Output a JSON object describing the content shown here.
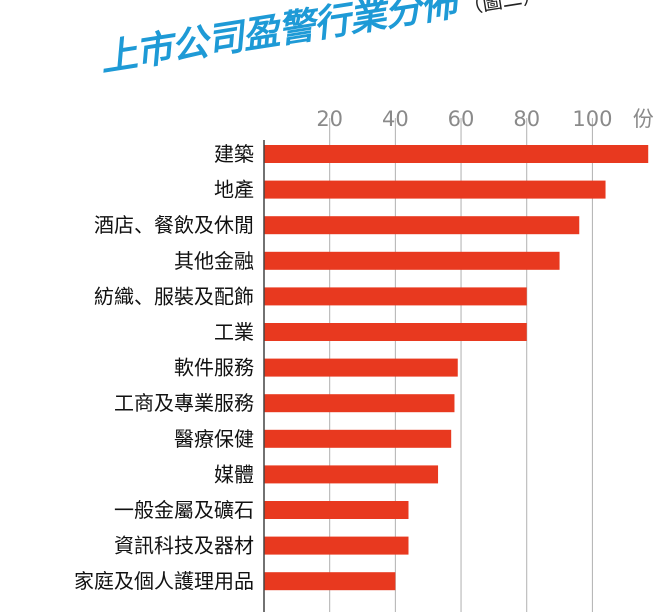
{
  "title": {
    "main": "上市公司盈警行業分佈",
    "sub": "（圖二）"
  },
  "chart_data": {
    "type": "bar",
    "orientation": "horizontal",
    "title": "上市公司盈警行業分佈（圖二）",
    "xlabel": "",
    "ylabel": "",
    "unit_label": "份",
    "xlim": [
      0,
      120
    ],
    "xticks": [
      20,
      40,
      60,
      80,
      100
    ],
    "grid": true,
    "bar_color": "#e8391f",
    "grid_color": "#b0b0b0",
    "categories": [
      "建築",
      "地產",
      "酒店、餐飲及休閒",
      "其他金融",
      "紡織、服裝及配飾",
      "工業",
      "軟件服務",
      "工商及專業服務",
      "醫療保健",
      "媒體",
      "一般金屬及礦石",
      "資訊科技及器材",
      "家庭及個人護理用品"
    ],
    "values": [
      117,
      104,
      96,
      90,
      80,
      80,
      59,
      58,
      57,
      53,
      44,
      44,
      40
    ]
  }
}
